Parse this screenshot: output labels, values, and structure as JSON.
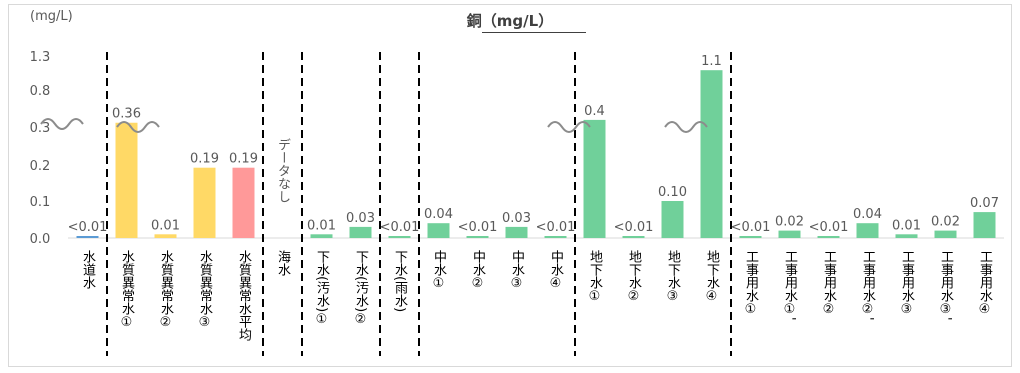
{
  "chart_data": {
    "type": "bar",
    "title": "銅（mg/L）",
    "unit_label": "(mg/L)",
    "y_ticks": [
      "1.3",
      "0.8",
      "0.3",
      "0.3",
      "0.2",
      "0.1",
      "0.0"
    ],
    "axis_breaks": [
      "0.3 → 0.8 (broken axis)"
    ],
    "categories": [
      "水道水",
      "水質異常水①",
      "水質異常水②",
      "水質異常水③",
      "水質異常水平均",
      "海水",
      "下水(汚水)①",
      "下水(汚水)②",
      "下水(雨水)",
      "中水①",
      "中水②",
      "中水③",
      "中水④",
      "地下水①",
      "地下水②",
      "地下水③",
      "地下水④",
      "工事用水①",
      "工事用水①'",
      "工事用水②",
      "工事用水②'",
      "工事用水③",
      "工事用水③'",
      "工事用水④"
    ],
    "values": [
      0.005,
      0.36,
      0.01,
      0.19,
      0.19,
      null,
      0.01,
      0.03,
      0.005,
      0.04,
      0.005,
      0.03,
      0.005,
      0.4,
      0.005,
      0.1,
      1.1,
      0.005,
      0.02,
      0.005,
      0.04,
      0.01,
      0.02,
      0.07
    ],
    "data_labels": [
      "<0.01",
      "0.36",
      "0.01",
      "0.19",
      "0.19",
      "データなし",
      "0.01",
      "0.03",
      "<0.01",
      "0.04",
      "<0.01",
      "0.03",
      "<0.01",
      "0.4",
      "<0.01",
      "0.10",
      "1.1",
      "<0.01",
      "0.02",
      "<0.01",
      "0.04",
      "0.01",
      "0.02",
      "0.07"
    ],
    "bar_colors": [
      "#5b9bd5",
      "#ffd966",
      "#ffd966",
      "#ffd966",
      "#ff9999",
      "#ffffff",
      "#70d09a",
      "#70d09a",
      "#70d09a",
      "#70d09a",
      "#70d09a",
      "#70d09a",
      "#70d09a",
      "#70d09a",
      "#70d09a",
      "#70d09a",
      "#70d09a",
      "#70d09a",
      "#70d09a",
      "#70d09a",
      "#70d09a",
      "#70d09a",
      "#70d09a",
      "#70d09a"
    ],
    "group_dividers_after": [
      0,
      4,
      5,
      7,
      8,
      12,
      16
    ],
    "gridlines": false
  }
}
